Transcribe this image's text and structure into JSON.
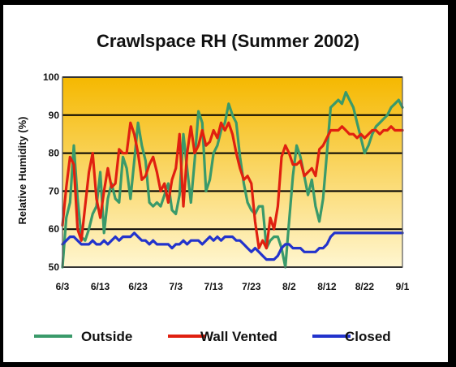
{
  "chart_data": {
    "type": "line",
    "title": "Crawlspace RH  (Summer 2002)",
    "ylabel": "Relative Humidity (%)",
    "xlabel": "",
    "ylim": [
      50,
      100
    ],
    "yticks": [
      50,
      60,
      70,
      80,
      90,
      100
    ],
    "xticks": [
      {
        "label": "6/3",
        "day": 0
      },
      {
        "label": "6/13",
        "day": 10
      },
      {
        "label": "6/23",
        "day": 20
      },
      {
        "label": "7/3",
        "day": 30
      },
      {
        "label": "7/13",
        "day": 40
      },
      {
        "label": "7/23",
        "day": 50
      },
      {
        "label": "8/2",
        "day": 60
      },
      {
        "label": "8/12",
        "day": 70
      },
      {
        "label": "8/22",
        "day": 80
      },
      {
        "label": "9/1",
        "day": 90
      }
    ],
    "x": [
      0,
      1,
      2,
      3,
      4,
      5,
      6,
      7,
      8,
      9,
      10,
      11,
      12,
      13,
      14,
      15,
      16,
      17,
      18,
      19,
      20,
      21,
      22,
      23,
      24,
      25,
      26,
      27,
      28,
      29,
      30,
      31,
      32,
      33,
      34,
      35,
      36,
      37,
      38,
      39,
      40,
      41,
      42,
      43,
      44,
      45,
      46,
      47,
      48,
      49,
      50,
      51,
      52,
      53,
      54,
      55,
      56,
      57,
      58,
      59,
      60,
      61,
      62,
      63,
      64,
      65,
      66,
      67,
      68,
      69,
      70,
      71,
      72,
      73,
      74,
      75,
      76,
      77,
      78,
      79,
      80,
      81,
      82,
      83,
      84,
      85,
      86,
      87,
      88,
      89,
      90
    ],
    "grid": true,
    "legend_position": "bottom",
    "background": {
      "top": "#f5b800",
      "bottom": "#fff6d0"
    },
    "series": [
      {
        "name": "Outside",
        "color": "#3a9a6a",
        "values": [
          50,
          63,
          67,
          82,
          68,
          58,
          57,
          60,
          64,
          66,
          75,
          59,
          68,
          72,
          68,
          67,
          79,
          76,
          68,
          78,
          88,
          82,
          78,
          67,
          66,
          67,
          66,
          69,
          72,
          65,
          64,
          69,
          85,
          76,
          67,
          78,
          91,
          88,
          70,
          73,
          80,
          82,
          86,
          88,
          93,
          90,
          88,
          79,
          72,
          67,
          65,
          64,
          66,
          66,
          55,
          57,
          58,
          58,
          55,
          50,
          62,
          74,
          82,
          79,
          74,
          69,
          73,
          66,
          62,
          68,
          80,
          92,
          93,
          94,
          93,
          96,
          94,
          92,
          88,
          84,
          80,
          82,
          85,
          87,
          88,
          89,
          90,
          92,
          93,
          94,
          92
        ]
      },
      {
        "name": "Wall Vented",
        "color": "#e02010",
        "values": [
          61,
          71,
          79,
          77,
          60,
          57,
          66,
          75,
          80,
          68,
          63,
          70,
          76,
          71,
          72,
          81,
          80,
          80,
          88,
          85,
          80,
          73,
          74,
          77,
          79,
          75,
          70,
          72,
          67,
          73,
          76,
          85,
          66,
          80,
          87,
          80,
          82,
          86,
          82,
          83,
          86,
          84,
          88,
          86,
          88,
          85,
          80,
          76,
          73,
          74,
          72,
          62,
          55,
          57,
          55,
          63,
          60,
          66,
          79,
          82,
          80,
          77,
          77,
          78,
          74,
          75,
          76,
          74,
          81,
          82,
          84,
          86,
          86,
          86,
          87,
          86,
          85,
          85,
          84,
          85,
          84,
          85,
          86,
          86,
          85,
          86,
          86,
          87,
          86,
          86,
          86
        ]
      },
      {
        "name": "Closed",
        "color": "#2233cc",
        "values": [
          56,
          57,
          58,
          58,
          57,
          56,
          56,
          56,
          57,
          56,
          56,
          57,
          56,
          57,
          58,
          57,
          58,
          58,
          58,
          59,
          58,
          57,
          57,
          56,
          57,
          56,
          56,
          56,
          56,
          55,
          56,
          56,
          57,
          56,
          57,
          57,
          57,
          56,
          57,
          58,
          57,
          58,
          57,
          58,
          58,
          58,
          57,
          57,
          56,
          55,
          54,
          55,
          54,
          53,
          52,
          52,
          52,
          53,
          55,
          56,
          56,
          55,
          55,
          55,
          54,
          54,
          54,
          54,
          55,
          55,
          56,
          58,
          59,
          59,
          59,
          59,
          59,
          59,
          59,
          59,
          59,
          59,
          59,
          59,
          59,
          59,
          59,
          59,
          59,
          59,
          59
        ]
      }
    ]
  }
}
